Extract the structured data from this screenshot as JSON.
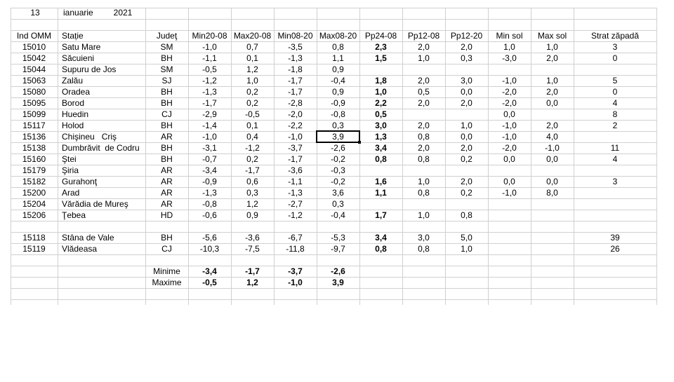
{
  "header": {
    "day": "13",
    "month": "ianuarie",
    "year": "2021"
  },
  "table": {
    "columns": [
      "Ind OMM",
      "Stație",
      "Judeţ",
      "Min20-08",
      "Max20-08",
      "Min08-20",
      "Max08-20",
      "Pp24-08",
      "Pp12-08",
      "Pp12-20",
      "Min sol",
      "Max sol",
      "Strat zăpadă"
    ],
    "rows": [
      [
        "15010",
        "Satu Mare",
        "SM",
        "-1,0",
        "0,7",
        "-3,5",
        "0,8",
        "2,3",
        "2,0",
        "2,0",
        "1,0",
        "1,0",
        "3"
      ],
      [
        "15042",
        "Săcuieni",
        "BH",
        "-1,1",
        "0,1",
        "-1,3",
        "1,1",
        "1,5",
        "1,0",
        "0,3",
        "-3,0",
        "2,0",
        "0"
      ],
      [
        "15044",
        "Supuru de Jos",
        "SM",
        "-0,5",
        "1,2",
        "-1,8",
        "0,9",
        null,
        null,
        null,
        null,
        null,
        null
      ],
      [
        "15063",
        "Zalău",
        "SJ",
        "-1,2",
        "1,0",
        "-1,7",
        "-0,4",
        "1,8",
        "2,0",
        "3,0",
        "-1,0",
        "1,0",
        "5"
      ],
      [
        "15080",
        "Oradea",
        "BH",
        "-1,3",
        "0,2",
        "-1,7",
        "0,9",
        "1,0",
        "0,5",
        "0,0",
        "-2,0",
        "2,0",
        "0"
      ],
      [
        "15095",
        "Borod",
        "BH",
        "-1,7",
        "0,2",
        "-2,8",
        "-0,9",
        "2,2",
        "2,0",
        "2,0",
        "-2,0",
        "0,0",
        "4"
      ],
      [
        "15099",
        "Huedin",
        "CJ",
        "-2,9",
        "-0,5",
        "-2,0",
        "-0,8",
        "0,5",
        null,
        null,
        "0,0",
        null,
        "8"
      ],
      [
        "15117",
        "Holod",
        "BH",
        "-1,4",
        "0,1",
        "-2,2",
        "0,3",
        "3,0",
        "2,0",
        "1,0",
        "-1,0",
        "2,0",
        "2"
      ],
      [
        "15136",
        "Chişineu   Criş",
        "AR",
        "-1,0",
        "0,4",
        "-1,0",
        "3,9",
        "1,3",
        "0,8",
        "0,0",
        "-1,0",
        "4,0",
        null
      ],
      [
        "15138",
        "Dumbrăvit  de Codru",
        "BH",
        "-3,1",
        "-1,2",
        "-3,7",
        "-2,6",
        "3,4",
        "2,0",
        "2,0",
        "-2,0",
        "-1,0",
        "11"
      ],
      [
        "15160",
        "Ştei",
        "BH",
        "-0,7",
        "0,2",
        "-1,7",
        "-0,2",
        "0,8",
        "0,8",
        "0,2",
        "0,0",
        "0,0",
        "4"
      ],
      [
        "15179",
        "Şiria",
        "AR",
        "-3,4",
        "-1,7",
        "-3,6",
        "-0,3",
        null,
        null,
        null,
        null,
        null,
        null
      ],
      [
        "15182",
        "Gurahonţ",
        "AR",
        "-0,9",
        "0,6",
        "-1,1",
        "-0,2",
        "1,6",
        "1,0",
        "2,0",
        "0,0",
        "0,0",
        "3"
      ],
      [
        "15200",
        "Arad",
        "AR",
        "-1,3",
        "0,3",
        "-1,3",
        "3,6",
        "1,1",
        "0,8",
        "0,2",
        "-1,0",
        "8,0",
        null
      ],
      [
        "15204",
        "Vărădia de Mureş",
        "AR",
        "-0,8",
        "1,2",
        "-2,7",
        "0,3",
        null,
        null,
        null,
        null,
        null,
        null
      ],
      [
        "15206",
        "Ţebea",
        "HD",
        "-0,6",
        "0,9",
        "-1,2",
        "-0,4",
        "1,7",
        "1,0",
        "0,8",
        null,
        null,
        null
      ]
    ],
    "mountain_rows": [
      [
        "15118",
        "Stâna de Vale",
        "BH",
        "-5,6",
        "-3,6",
        "-6,7",
        "-5,3",
        "3,4",
        "3,0",
        "5,0",
        null,
        null,
        "39"
      ],
      [
        "15119",
        "Vlădeasa",
        "CJ",
        "-10,3",
        "-7,5",
        "-11,8",
        "-9,7",
        "0,8",
        "0,8",
        "1,0",
        null,
        null,
        "26"
      ]
    ],
    "summary": [
      {
        "label": "Minime",
        "values": [
          "-3,4",
          "-1,7",
          "-3,7",
          "-2,6"
        ],
        "color": "#0000cc"
      },
      {
        "label": "Maxime",
        "values": [
          "-0,5",
          "1,2",
          "-1,0",
          "3,9"
        ],
        "color": "#ee0000"
      }
    ]
  }
}
